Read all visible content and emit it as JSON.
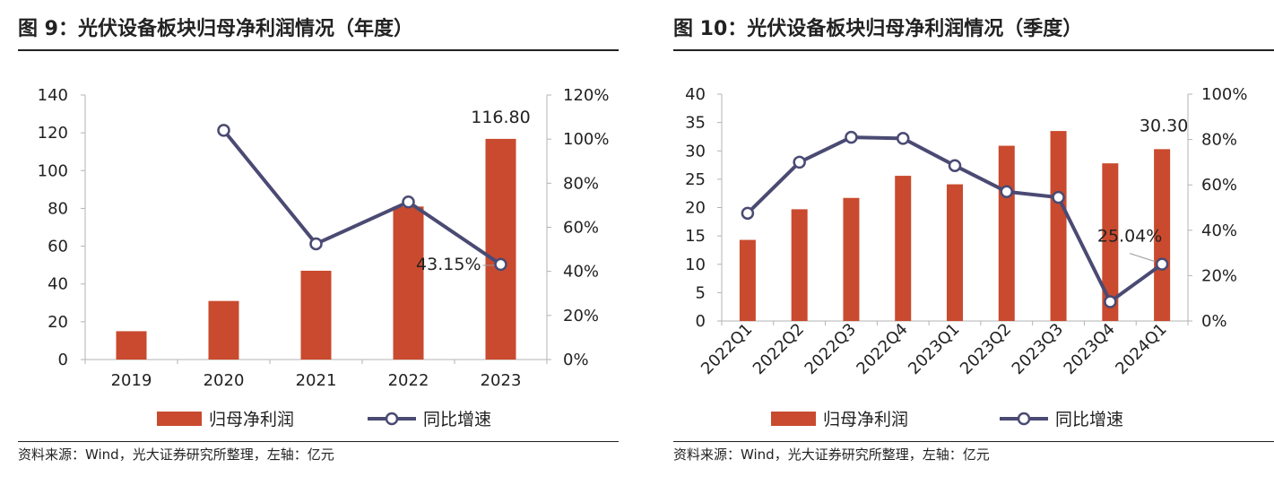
{
  "charts": [
    {
      "title": "图 9：光伏设备板块归母净利润情况（年度）",
      "source": "资料来源：Wind，光大证券研究所整理，左轴：亿元"
    },
    {
      "title": "图 10：光伏设备板块归母净利润情况（季度）",
      "source": "资料来源：Wind，光大证券研究所整理，左轴：亿元"
    }
  ],
  "colors": {
    "bar": "#c94a2e",
    "line": "#4a4a73",
    "axis": "#b3b3b3",
    "text": "#222222"
  },
  "chart_data": [
    {
      "type": "bar",
      "title": "图 9：光伏设备板块归母净利润情况（年度）",
      "categories": [
        "2019",
        "2020",
        "2021",
        "2022",
        "2023"
      ],
      "series": [
        {
          "name": "归母净利润",
          "type": "bar",
          "axis": "left",
          "values": [
            15,
            31,
            47,
            81,
            116.8
          ]
        },
        {
          "name": "同比增速",
          "type": "line",
          "axis": "right",
          "values": [
            null,
            1.04,
            0.525,
            0.715,
            0.4315
          ]
        }
      ],
      "left_axis": {
        "min": 0,
        "max": 140,
        "ticks": [
          0,
          20,
          40,
          60,
          80,
          100,
          120,
          140
        ],
        "labels": [
          "0",
          "20",
          "40",
          "60",
          "80",
          "100",
          "120",
          "140"
        ]
      },
      "right_axis": {
        "min": 0,
        "max": 1.2,
        "ticks": [
          0,
          0.2,
          0.4,
          0.6,
          0.8,
          1.0,
          1.2
        ],
        "labels": [
          "0%",
          "20%",
          "40%",
          "60%",
          "80%",
          "100%",
          "120%"
        ]
      },
      "annotations": [
        {
          "text": "116.80",
          "series": "归母净利润",
          "index": 4
        },
        {
          "text": "43.15%",
          "series": "同比增速",
          "index": 4
        }
      ],
      "legend": {
        "position": "bottom",
        "items": [
          "归母净利润",
          "同比增速"
        ]
      },
      "grid": false
    },
    {
      "type": "bar",
      "title": "图 10：光伏设备板块归母净利润情况（季度）",
      "categories": [
        "2022Q1",
        "2022Q2",
        "2022Q3",
        "2022Q4",
        "2023Q1",
        "2023Q2",
        "2023Q3",
        "2023Q4",
        "2024Q1"
      ],
      "series": [
        {
          "name": "归母净利润",
          "type": "bar",
          "axis": "left",
          "values": [
            14.3,
            19.7,
            21.7,
            25.6,
            24.1,
            30.9,
            33.5,
            27.8,
            30.3
          ]
        },
        {
          "name": "同比增速",
          "type": "line",
          "axis": "right",
          "values": [
            0.475,
            0.7,
            0.81,
            0.805,
            0.685,
            0.57,
            0.545,
            0.085,
            0.2504
          ]
        }
      ],
      "left_axis": {
        "min": 0,
        "max": 40,
        "ticks": [
          0,
          5,
          10,
          15,
          20,
          25,
          30,
          35,
          40
        ],
        "labels": [
          "0",
          "5",
          "10",
          "15",
          "20",
          "25",
          "30",
          "35",
          "40"
        ]
      },
      "right_axis": {
        "min": 0,
        "max": 1.0,
        "ticks": [
          0,
          0.2,
          0.4,
          0.6,
          0.8,
          1.0
        ],
        "labels": [
          "0%",
          "20%",
          "40%",
          "60%",
          "80%",
          "100%"
        ]
      },
      "annotations": [
        {
          "text": "30.30",
          "series": "归母净利润",
          "index": 8
        },
        {
          "text": "25.04%",
          "series": "同比增速",
          "index": 8
        }
      ],
      "legend": {
        "position": "bottom",
        "items": [
          "归母净利润",
          "同比增速"
        ]
      },
      "grid": false
    }
  ]
}
